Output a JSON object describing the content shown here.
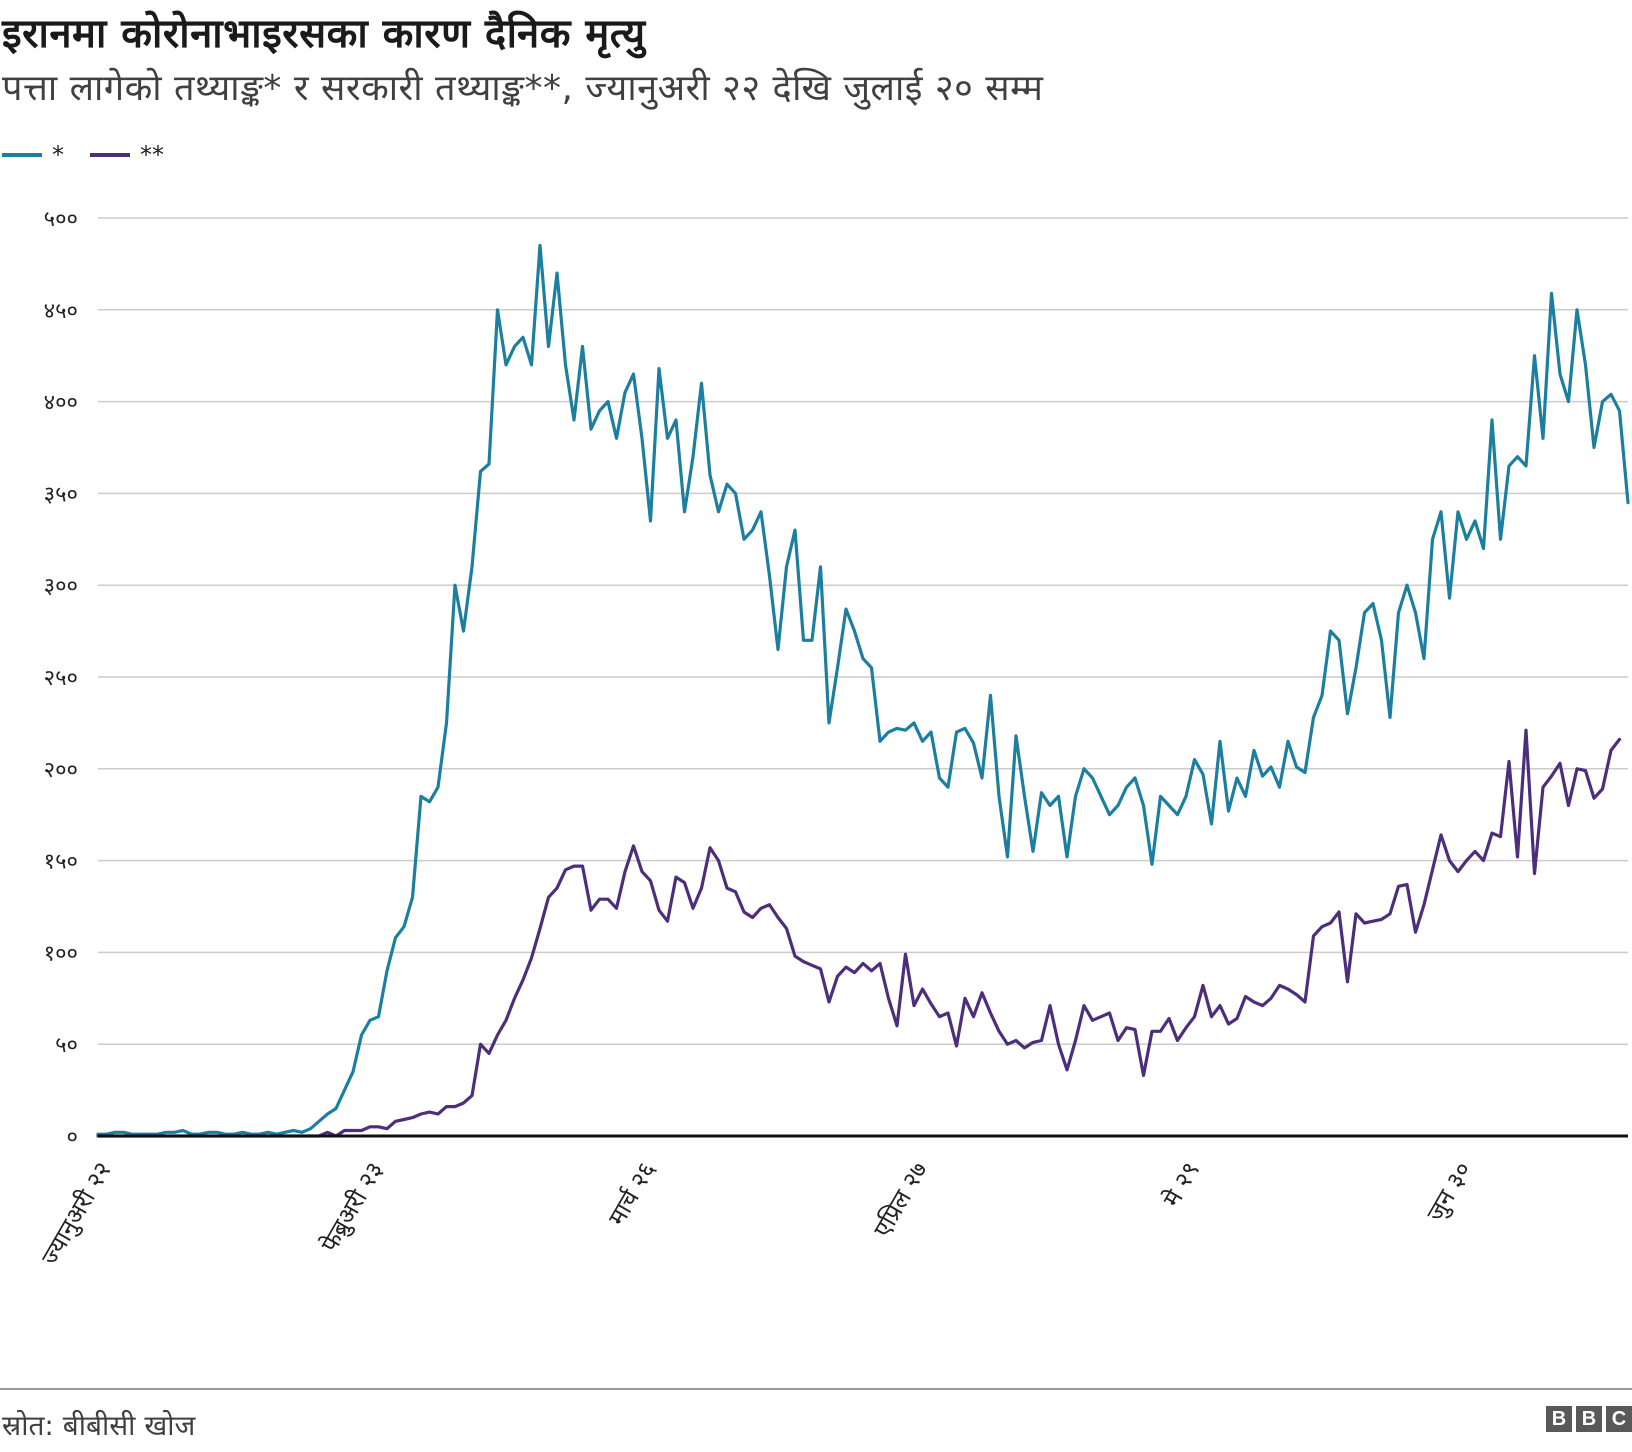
{
  "title": "इरानमा कोरोनाभाइरसका कारण दैनिक मृत्यु",
  "subtitle": "पत्ता लागेको तथ्याङ्क* र सरकारी तथ्याङ्क**, ज्यानुअरी २२ देखि जुलाई २० सम्म",
  "legend": [
    {
      "label": "*",
      "color": "#1c7fa0"
    },
    {
      "label": "**",
      "color": "#4d2e7b"
    }
  ],
  "source": "स्रोत: बीबीसी खोज",
  "logo": "BBC",
  "chart_data": {
    "type": "line",
    "title": "इरानमा कोरोनाभाइरसका कारण दैनिक मृत्यु",
    "xlabel": "",
    "ylabel": "",
    "x_start": "2020-01-22",
    "x_end": "2020-07-20",
    "ylim": [
      0,
      500
    ],
    "grid": true,
    "legend_position": "top-left",
    "y_ticks": [
      0,
      50,
      100,
      150,
      200,
      250,
      300,
      350,
      400,
      450,
      500
    ],
    "y_tick_labels": [
      "०",
      "५०",
      "१००",
      "१५०",
      "२००",
      "२५०",
      "३००",
      "३५०",
      "४००",
      "४५०",
      "५००"
    ],
    "x_ticks": [
      {
        "date": "2020-01-22",
        "label": "ज्यानुअरी २२"
      },
      {
        "date": "2020-02-23",
        "label": "फेब्रुअरी २३"
      },
      {
        "date": "2020-03-26",
        "label": "मार्च २६"
      },
      {
        "date": "2020-04-27",
        "label": "एप्रिल २७"
      },
      {
        "date": "2020-05-29",
        "label": "मे २९"
      },
      {
        "date": "2020-06-30",
        "label": "जुन ३०"
      }
    ],
    "series": [
      {
        "name": "*",
        "color": "#1c7fa0",
        "values": [
          1,
          1,
          2,
          2,
          1,
          1,
          1,
          1,
          2,
          2,
          3,
          1,
          1,
          2,
          2,
          1,
          1,
          2,
          1,
          1,
          2,
          1,
          2,
          3,
          2,
          4,
          8,
          12,
          15,
          25,
          35,
          55,
          63,
          65,
          90,
          108,
          114,
          130,
          185,
          182,
          190,
          225,
          300,
          275,
          310,
          362,
          366,
          450,
          420,
          430,
          435,
          420,
          485,
          430,
          470,
          420,
          390,
          430,
          385,
          395,
          400,
          380,
          405,
          415,
          380,
          335,
          418,
          380,
          390,
          340,
          370,
          410,
          360,
          340,
          355,
          350,
          325,
          330,
          340,
          305,
          265,
          310,
          330,
          270,
          270,
          310,
          225,
          255,
          287,
          275,
          260,
          255,
          215,
          220,
          222,
          221,
          225,
          215,
          220,
          195,
          190,
          220,
          222,
          214,
          195,
          240,
          185,
          152,
          218,
          185,
          155,
          187,
          180,
          185,
          152,
          185,
          200,
          195,
          185,
          175,
          180,
          190,
          195,
          180,
          148,
          185,
          180,
          175,
          185,
          205,
          197,
          170,
          215,
          177,
          195,
          185,
          210,
          196,
          201,
          190,
          215,
          201,
          198,
          228,
          240,
          275,
          270,
          230,
          255,
          285,
          290,
          270,
          228,
          285,
          300,
          285,
          260,
          325,
          340,
          293,
          340,
          325,
          335,
          320,
          390,
          325,
          365,
          370,
          365,
          425,
          380,
          459,
          415,
          400,
          450,
          420,
          375,
          400,
          404,
          395,
          345
        ]
      },
      {
        "name": "**",
        "color": "#4d2e7b",
        "values": [
          0,
          0,
          0,
          0,
          0,
          0,
          0,
          0,
          0,
          0,
          0,
          0,
          0,
          0,
          0,
          0,
          0,
          0,
          0,
          0,
          0,
          0,
          0,
          0,
          0,
          0,
          0,
          2,
          0,
          3,
          3,
          3,
          5,
          5,
          4,
          8,
          9,
          10,
          12,
          13,
          12,
          16,
          16,
          18,
          22,
          50,
          45,
          55,
          63,
          75,
          85,
          97,
          113,
          130,
          135,
          145,
          147,
          147,
          123,
          129,
          129,
          124,
          144,
          158,
          144,
          139,
          123,
          117,
          141,
          138,
          124,
          135,
          157,
          150,
          135,
          133,
          122,
          119,
          124,
          126,
          119,
          113,
          98,
          95,
          93,
          91,
          73,
          87,
          92,
          89,
          94,
          90,
          94,
          75,
          60,
          99,
          71,
          80,
          72,
          65,
          67,
          49,
          75,
          65,
          78,
          67,
          57,
          50,
          52,
          48,
          51,
          52,
          71,
          50,
          36,
          52,
          71,
          63,
          65,
          67,
          52,
          59,
          58,
          33,
          57,
          57,
          64,
          52,
          59,
          65,
          82,
          65,
          71,
          61,
          64,
          76,
          73,
          71,
          75,
          82,
          80,
          77,
          73,
          109,
          114,
          116,
          122,
          84,
          121,
          116,
          117,
          118,
          121,
          136,
          137,
          111,
          126,
          145,
          164,
          150,
          144,
          150,
          155,
          150,
          165,
          163,
          204,
          152,
          221,
          143,
          190,
          196,
          203,
          180,
          200,
          199,
          184,
          189,
          210,
          216
        ]
      }
    ]
  }
}
